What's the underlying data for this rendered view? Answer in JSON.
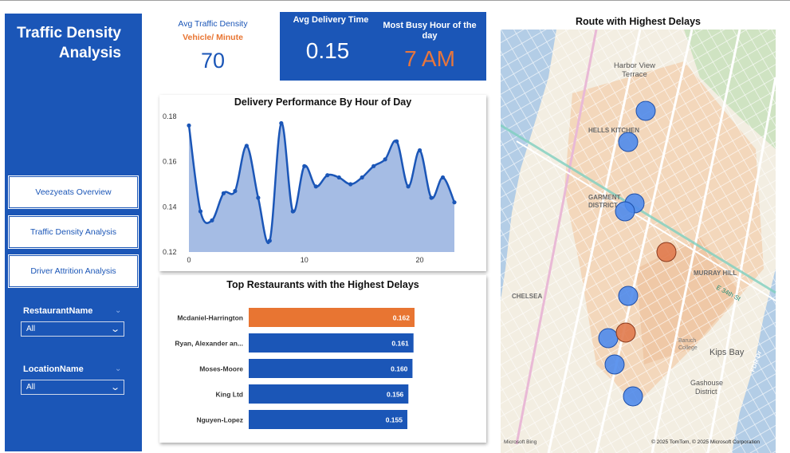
{
  "sidebar": {
    "title_line1": "Traffic Density",
    "title_line2": "Analysis",
    "nav": [
      "Veezyeats Overview",
      "Traffic Density Analysis",
      "Driver Attrition Analysis"
    ],
    "slicers": [
      {
        "label": "RestaurantName",
        "value": "All"
      },
      {
        "label": "LocationName",
        "value": "All"
      }
    ]
  },
  "kpis": {
    "traffic": {
      "title": "Avg Traffic Density",
      "subtitle": "Vehicle/ Minute",
      "value": "70"
    },
    "delivery": {
      "title": "Avg Delivery Time",
      "value": "0.15"
    },
    "busy": {
      "title": "Most Busy Hour of the day",
      "value": "7 AM"
    }
  },
  "colors": {
    "primary": "#1b56b7",
    "accent": "#e87532",
    "area_fill": "#a5bce4",
    "line": "#1b56b7"
  },
  "hourly_chart": {
    "title": "Delivery Performance By Hour of Day",
    "chart_data": {
      "type": "area",
      "x": [
        0,
        1,
        2,
        3,
        4,
        5,
        6,
        7,
        8,
        9,
        10,
        11,
        12,
        13,
        14,
        15,
        16,
        17,
        18,
        19,
        20,
        21,
        22,
        23
      ],
      "values": [
        0.176,
        0.138,
        0.134,
        0.146,
        0.147,
        0.167,
        0.144,
        0.125,
        0.177,
        0.138,
        0.158,
        0.149,
        0.154,
        0.153,
        0.15,
        0.153,
        0.158,
        0.161,
        0.169,
        0.149,
        0.165,
        0.144,
        0.153,
        0.142
      ],
      "ylim": [
        0.12,
        0.18
      ],
      "yticks": [
        "0.18",
        "0.16",
        "0.14",
        "0.12"
      ],
      "xticks": [
        "0",
        "10",
        "20"
      ]
    }
  },
  "bar_chart": {
    "title": "Top Restaurants with the Highest Delays",
    "chart_data": {
      "type": "bar",
      "categories": [
        "Mcdaniel-Harrington",
        "Ryan, Alexander an...",
        "Moses-Moore",
        "King Ltd",
        "Nguyen-Lopez"
      ],
      "values": [
        0.162,
        0.161,
        0.16,
        0.156,
        0.155
      ],
      "labels": [
        "0.162",
        "0.161",
        "0.160",
        "0.156",
        "0.155"
      ],
      "highlight_index": 0
    }
  },
  "map": {
    "title": "Route with Highest Delays",
    "labels": [
      "Harbor View",
      "Terrace",
      "HELLS KITCHEN",
      "GARMENT",
      "DISTRICT",
      "MURRAY HILL",
      "CHELSEA",
      "Kips Bay",
      "Gashouse",
      "District",
      "Baruch",
      "College",
      "E 34th St",
      "FDR Dr"
    ],
    "attribution": "© 2025 TomTom, © 2025 Microsoft Corporation",
    "logo": "Microsoft Bing"
  }
}
